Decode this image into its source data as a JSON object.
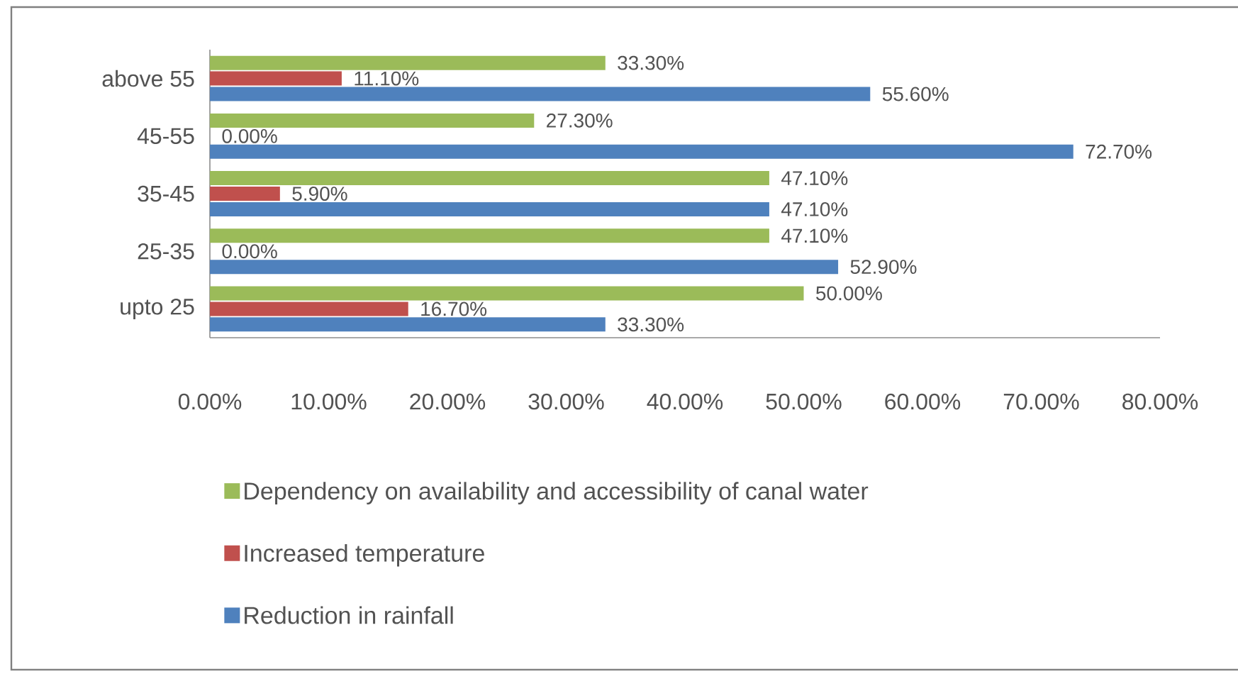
{
  "chart_data": {
    "type": "bar",
    "orientation": "horizontal",
    "categories": [
      "above 55",
      "45-55",
      "35-45",
      "25-35",
      "upto 25"
    ],
    "series": [
      {
        "name": "Dependency on availability and accessibility of canal water",
        "color": "#9bbb59",
        "values": [
          33.3,
          27.3,
          47.1,
          47.1,
          50.0
        ],
        "value_labels": [
          "33.30%",
          "27.30%",
          "47.10%",
          "47.10%",
          "50.00%"
        ]
      },
      {
        "name": "Increased temperature",
        "color": "#c0504d",
        "values": [
          11.1,
          0.0,
          5.9,
          0.0,
          16.7
        ],
        "value_labels": [
          "11.10%",
          "0.00%",
          "5.90%",
          "0.00%",
          "16.70%"
        ]
      },
      {
        "name": "Reduction in rainfall",
        "color": "#4f81bd",
        "values": [
          55.6,
          72.7,
          47.1,
          52.9,
          33.3
        ],
        "value_labels": [
          "55.60%",
          "72.70%",
          "47.10%",
          "52.90%",
          "33.30%"
        ]
      }
    ],
    "xlim": [
      0,
      80
    ],
    "xticks": [
      {
        "value": 0,
        "label": "0.00%"
      },
      {
        "value": 10,
        "label": "10.00%"
      },
      {
        "value": 20,
        "label": "20.00%"
      },
      {
        "value": 30,
        "label": "30.00%"
      },
      {
        "value": 40,
        "label": "40.00%"
      },
      {
        "value": 50,
        "label": "50.00%"
      },
      {
        "value": 60,
        "label": "60.00%"
      },
      {
        "value": 70,
        "label": "70.00%"
      },
      {
        "value": 80,
        "label": "80.00%"
      }
    ],
    "legend": "bottom"
  }
}
